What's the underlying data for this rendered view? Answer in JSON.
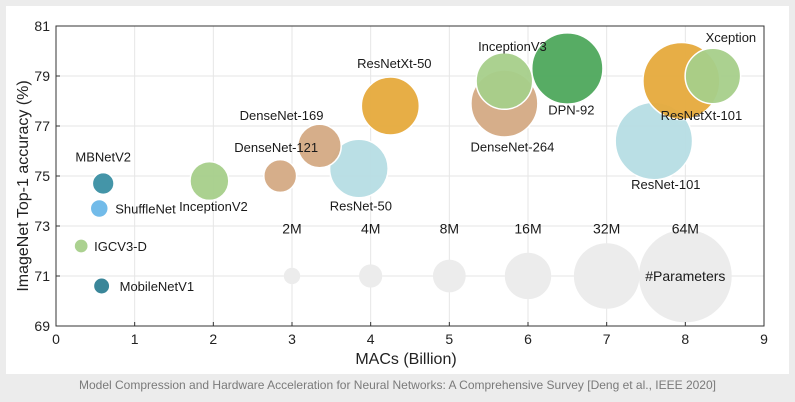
{
  "caption": "Model Compression and Hardware Acceleration for Neural Networks: A Comprehensive Survey [Deng et al., IEEE 2020]",
  "chart_data": {
    "type": "scatter",
    "title": "",
    "xlabel": "MACs (Billion)",
    "ylabel": "ImageNet Top-1 accuracy (%)",
    "xlim": [
      0,
      9
    ],
    "ylim": [
      69,
      81
    ],
    "xticks": [
      "0",
      "1",
      "2",
      "3",
      "4",
      "5",
      "6",
      "7",
      "8",
      "9"
    ],
    "yticks": [
      "69",
      "71",
      "73",
      "75",
      "77",
      "79",
      "81"
    ],
    "grid": true,
    "size_encoding": "#Parameters",
    "points": [
      {
        "name": "MBNetV2",
        "x": 0.6,
        "y": 74.7,
        "params_m": 3.5,
        "color": "#3a8fa3"
      },
      {
        "name": "ShuffleNet",
        "x": 0.55,
        "y": 73.7,
        "params_m": 2.4,
        "color": "#6ab7e8"
      },
      {
        "name": "IGCV3-D",
        "x": 0.32,
        "y": 72.2,
        "params_m": 1.5,
        "color": "#a7cf8a"
      },
      {
        "name": "MobileNetV1",
        "x": 0.58,
        "y": 70.6,
        "params_m": 2.0,
        "color": "#2f7f94"
      },
      {
        "name": "InceptionV2",
        "x": 1.95,
        "y": 74.8,
        "params_m": 11.2,
        "color": "#a7cf8a"
      },
      {
        "name": "DenseNet-121",
        "x": 2.85,
        "y": 75.0,
        "params_m": 8.0,
        "color": "#d4aa84"
      },
      {
        "name": "DenseNet-169",
        "x": 3.35,
        "y": 76.2,
        "params_m": 14.0,
        "color": "#d4aa84"
      },
      {
        "name": "ResNet-50",
        "x": 3.85,
        "y": 75.3,
        "params_m": 25.5,
        "color": "#b6dde4"
      },
      {
        "name": "ResNetXt-50",
        "x": 4.25,
        "y": 77.8,
        "params_m": 25.0,
        "color": "#e6aa3c"
      },
      {
        "name": "InceptionV3",
        "x": 5.7,
        "y": 78.8,
        "params_m": 23.8,
        "color": "#a7cf8a"
      },
      {
        "name": "DPN-92",
        "x": 6.5,
        "y": 79.3,
        "params_m": 37.7,
        "color": "#4ea85c"
      },
      {
        "name": "DenseNet-264",
        "x": 5.7,
        "y": 77.9,
        "params_m": 33.3,
        "color": "#d4aa84"
      },
      {
        "name": "ResNet-101",
        "x": 7.6,
        "y": 76.4,
        "params_m": 44.5,
        "color": "#b6dde4"
      },
      {
        "name": "ResNetXt-101",
        "x": 7.95,
        "y": 78.8,
        "params_m": 44.0,
        "color": "#e6aa3c"
      },
      {
        "name": "Xception",
        "x": 8.35,
        "y": 79.0,
        "params_m": 22.9,
        "color": "#a7cf8a"
      }
    ],
    "size_legend": [
      {
        "label": "2M",
        "x": 3,
        "params_m": 2
      },
      {
        "label": "4M",
        "x": 4,
        "params_m": 4
      },
      {
        "label": "8M",
        "x": 5,
        "params_m": 8
      },
      {
        "label": "16M",
        "x": 6,
        "params_m": 16
      },
      {
        "label": "32M",
        "x": 7,
        "params_m": 32
      },
      {
        "label": "64M",
        "x": 8,
        "params_m": 64
      }
    ],
    "size_legend_y": 71.0,
    "size_legend_label_y": 72.9,
    "legend_color": "#ececec"
  }
}
